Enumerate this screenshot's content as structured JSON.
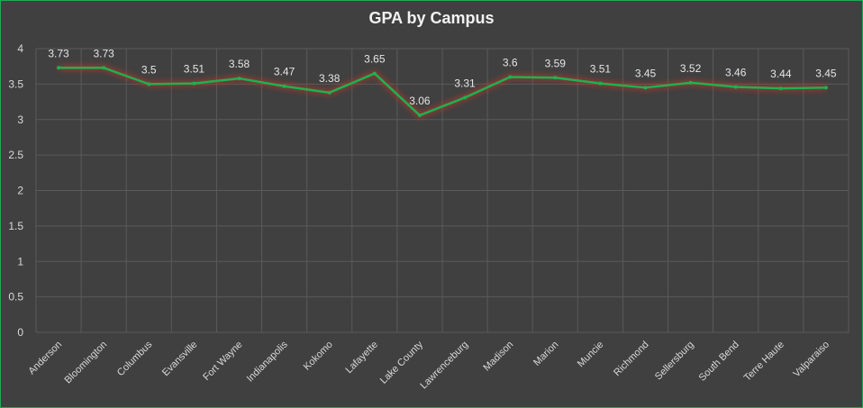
{
  "chart_data": {
    "type": "line",
    "title": "GPA by Campus",
    "xlabel": "",
    "ylabel": "",
    "ylim": [
      0,
      4
    ],
    "yticks": [
      "0",
      "0.5",
      "1",
      "1.5",
      "2",
      "2.5",
      "3",
      "3.5",
      "4"
    ],
    "grid": true,
    "legend": "none",
    "categories": [
      "Anderson",
      "Bloomington",
      "Columbus",
      "Evansville",
      "Fort Wayne",
      "Indianapolis",
      "Kokomo",
      "Lafayette",
      "Lake County",
      "Lawrenceburg",
      "Madison",
      "Marion",
      "Muncie",
      "Richmond",
      "Sellersburg",
      "South Bend",
      "Terre Haute",
      "Valparaiso"
    ],
    "series": [
      {
        "values": [
          3.73,
          3.73,
          3.5,
          3.51,
          3.58,
          3.47,
          3.38,
          3.65,
          3.06,
          3.31,
          3.6,
          3.59,
          3.51,
          3.45,
          3.52,
          3.46,
          3.44,
          3.45
        ],
        "labels": [
          "3.73",
          "3.73",
          "3.5",
          "3.51",
          "3.58",
          "3.47",
          "3.38",
          "3.65",
          "3.06",
          "3.31",
          "3.6",
          "3.59",
          "3.51",
          "3.45",
          "3.52",
          "3.46",
          "3.44",
          "3.45"
        ],
        "color": "#1fb14e",
        "glow": "#c0392b"
      }
    ]
  }
}
